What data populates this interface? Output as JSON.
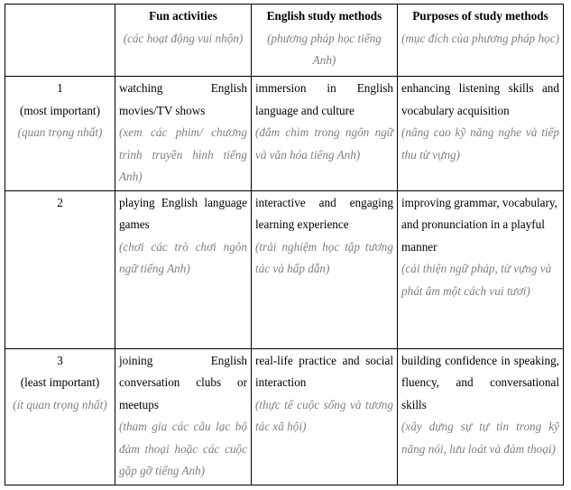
{
  "header": {
    "corner": "",
    "columns": [
      {
        "en": "Fun activities",
        "vi": "(các hoạt động vui nhộn)"
      },
      {
        "en": "English study methods",
        "vi": "(phương pháp học tiếng Anh)"
      },
      {
        "en": "Purposes of study methods",
        "vi": "(mục đích của phương pháp học)"
      }
    ]
  },
  "rows": [
    {
      "rank": "1",
      "rank_label": "(most important)",
      "rank_vi": "(quan trọng nhất)",
      "activity": {
        "en": "watching English movies/TV shows",
        "vi": "(xem các phim/ chương trình truyền hình tiếng Anh)"
      },
      "method": {
        "en": "immersion in English language and culture",
        "vi": "(đắm chìm trong ngôn ngữ và văn hóa tiếng Anh)"
      },
      "purpose": {
        "en": "enhancing listening skills and vocabulary acquisition",
        "vi": "(nâng cao kỹ năng nghe và tiếp thu từ vựng)"
      }
    },
    {
      "rank": "2",
      "rank_label": "",
      "rank_vi": "",
      "activity": {
        "en": "playing English language games",
        "vi": "(chơi các trò chơi ngôn ngữ tiếng Anh)"
      },
      "method": {
        "en": "interactive and engaging learning experience",
        "vi": "(trải nghiệm học tập tương tác và hấp dẫn)"
      },
      "purpose": {
        "en": "improving grammar, vocabulary, and pronunciation in a playful manner",
        "vi": "(cải thiện ngữ pháp, từ vựng và phát âm một cách vui tươi)"
      }
    },
    {
      "rank": "3",
      "rank_label": "(least important)",
      "rank_vi": "(ít quan trọng nhất)",
      "activity": {
        "en": "joining English conversation clubs or meetups",
        "vi": "(tham gia các câu lạc bộ đàm thoại hoặc các cuộc gặp gỡ tiếng Anh)"
      },
      "method": {
        "en": "real-life practice and social interaction",
        "vi": "(thực tế cuộc sống và tương tác xã hội)"
      },
      "purpose": {
        "en": "building confidence in speaking, fluency, and conversational skills",
        "vi": "(xây dựng sự tự tin trong kỹ năng nói, lưu loát và đàm thoại)"
      }
    }
  ]
}
